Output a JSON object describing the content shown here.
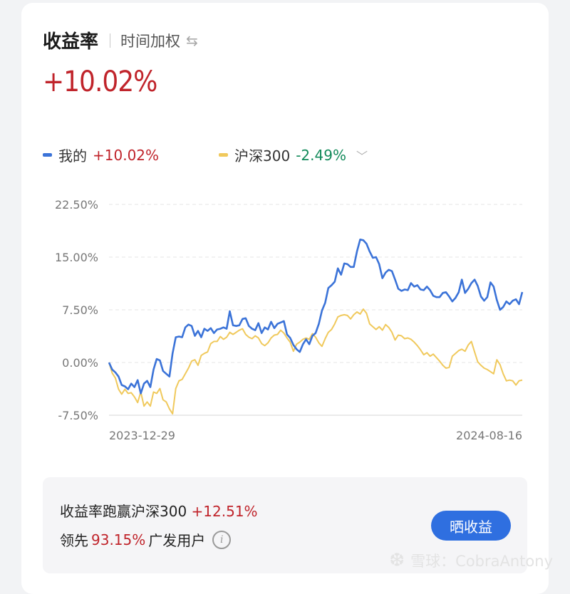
{
  "header": {
    "title": "收益率",
    "subtitle": "时间加权",
    "swap_icon": "swap-arrows-icon"
  },
  "headline_value": "+10.02%",
  "legend": [
    {
      "name": "我的",
      "value": "+10.02%",
      "color": "#3b73d8"
    },
    {
      "name": "沪深300",
      "value": "-2.49%",
      "color": "#f0c95c"
    }
  ],
  "chart_data": {
    "type": "line",
    "ytick_labels": [
      "22.50%",
      "15.00%",
      "7.50%",
      "0.00%",
      "-7.50%"
    ],
    "yticks": [
      22.5,
      15,
      7.5,
      0,
      -7.5
    ],
    "ylim": [
      -7.5,
      22.5
    ],
    "x_start_label": "2023-12-29",
    "x_end_label": "2024-08-16",
    "grid": true,
    "series": [
      {
        "name": "我的",
        "color": "#3b73d8",
        "values": [
          0,
          -1,
          -1.4,
          -2,
          -3.2,
          -3.4,
          -3.8,
          -3,
          -3.5,
          -2.5,
          -4.4,
          -3,
          -2.6,
          -3.5,
          -1,
          0.5,
          0.3,
          -1.2,
          -1.6,
          -2,
          1.3,
          3.6,
          3.7,
          3.6,
          5,
          5.4,
          5.2,
          3.8,
          4.5,
          3.6,
          4.8,
          4.5,
          4.9,
          4.2,
          4.7,
          4.8,
          5,
          4.8,
          7.3,
          5.3,
          5.2,
          5.3,
          6.2,
          6.3,
          5.2,
          4.8,
          4.6,
          5.6,
          4.2,
          5,
          4.7,
          5.8,
          4.9,
          5.5,
          5.7,
          5.9,
          4,
          3.5,
          2.5,
          1.9,
          1.5,
          2.6,
          3.3,
          2.6,
          3.8,
          4.2,
          5.5,
          7.4,
          8.5,
          10.6,
          11,
          11.5,
          13.4,
          12.5,
          14.1,
          14,
          13.6,
          13.6,
          15.8,
          17.5,
          17.4,
          16.9,
          15.8,
          14.9,
          15,
          14,
          12,
          12.8,
          13.2,
          13,
          11.8,
          10.5,
          10.2,
          10.4,
          10.3,
          11.3,
          10.8,
          11,
          10.4,
          10.3,
          10.8,
          10.3,
          9.5,
          9.3,
          9.3,
          9.9,
          10,
          9.4,
          8.7,
          9.2,
          10,
          11.8,
          9.9,
          10.5,
          11.3,
          11.8,
          10.9,
          9.4,
          8.8,
          9.3,
          11.4,
          10.8,
          8.9,
          7.5,
          7.9,
          8.7,
          8.3,
          8.8,
          9,
          8.3,
          10.02
        ]
      },
      {
        "name": "沪深300",
        "color": "#f0c95c",
        "values": [
          0,
          -1.5,
          -2.2,
          -3.8,
          -4.5,
          -3.8,
          -4.4,
          -4.3,
          -4.9,
          -5.7,
          -4.2,
          -6.2,
          -5.6,
          -6.2,
          -4.2,
          -4.4,
          -3.7,
          -5.3,
          -5.6,
          -6.6,
          -7.3,
          -3.7,
          -2.6,
          -2.4,
          -1.6,
          -0.8,
          0.2,
          0.4,
          -0.4,
          1,
          1.3,
          1.5,
          2.7,
          3,
          3,
          3.7,
          3.3,
          3.6,
          4.3,
          4,
          4.3,
          4.6,
          4.8,
          4,
          3.6,
          3.4,
          3.8,
          3.5,
          2.7,
          2.4,
          2.8,
          3.5,
          3.9,
          4,
          4.6,
          4.2,
          3.5,
          2.9,
          1.6,
          2.6,
          2.9,
          3.3,
          3.5,
          3.3,
          4.1,
          3.6,
          2.8,
          2.3,
          3.4,
          4.3,
          4.7,
          5.5,
          6.5,
          6.7,
          6.8,
          6.7,
          6.2,
          6.8,
          7.2,
          6.9,
          7.6,
          7,
          5.5,
          5.1,
          4.7,
          5.1,
          4.6,
          5.4,
          5,
          4.3,
          3.2,
          3.9,
          3.8,
          3.4,
          3.5,
          3.3,
          2.9,
          2.4,
          1.8,
          1.1,
          1.4,
          0.9,
          1.2,
          0.7,
          0.2,
          -0.4,
          -0.8,
          -0.7,
          0.9,
          1.3,
          1.7,
          1.9,
          1.6,
          2.5,
          3,
          1.5,
          0.1,
          -0.4,
          -0.8,
          -1,
          -1.3,
          -1.6,
          0.4,
          -0.3,
          -1.6,
          -2.6,
          -2.5,
          -2.6,
          -3.2,
          -2.6,
          -2.49
        ]
      }
    ]
  },
  "summary": {
    "line1_prefix": "收益率跑赢沪深300",
    "line1_value": "+12.51%",
    "line2_prefix": "领先",
    "line2_value": "93.15%",
    "line2_suffix": "广发用户",
    "info_icon": "info-icon",
    "share_button": "晒收益"
  },
  "watermark": {
    "text": "雪球：CobraAntony"
  }
}
